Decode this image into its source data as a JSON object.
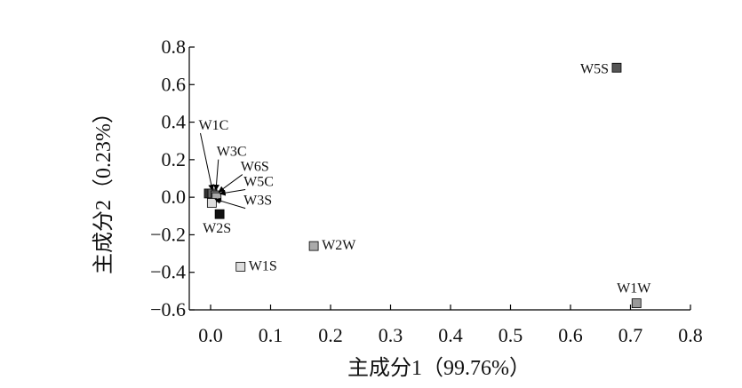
{
  "chart_data": {
    "type": "scatter",
    "xlabel": "主成分1（99.76%）",
    "ylabel": "主成分2（0.23%）",
    "xlim": [
      -0.03,
      0.8
    ],
    "ylim": [
      -0.6,
      0.8
    ],
    "x_ticks": [
      0.0,
      0.1,
      0.2,
      0.3,
      0.4,
      0.5,
      0.6,
      0.7,
      0.8
    ],
    "y_ticks": [
      0.8,
      0.6,
      0.4,
      0.2,
      0.0,
      -0.2,
      -0.4,
      -0.6
    ],
    "x_tick_labels": [
      "0.0",
      "0.1",
      "0.2",
      "0.3",
      "0.4",
      "0.5",
      "0.6",
      "0.7",
      "0.8"
    ],
    "y_tick_labels": [
      "0.8",
      "0.6",
      "0.4",
      "0.2",
      "0.0",
      "−0.2",
      "−0.4",
      "−0.6"
    ],
    "grid": false,
    "points": [
      {
        "label": "W5S",
        "x": 0.677,
        "y": 0.69,
        "color": "#555555",
        "label_pos": "left"
      },
      {
        "label": "W1C",
        "x": -0.003,
        "y": 0.02,
        "color": "#333333",
        "label_pos": "arrow",
        "label_at": [
          -0.02,
          0.36
        ]
      },
      {
        "label": "W3C",
        "x": 0.003,
        "y": 0.02,
        "color": "#666666",
        "label_pos": "arrow",
        "label_at": [
          0.01,
          0.22
        ]
      },
      {
        "label": "W6S",
        "x": 0.008,
        "y": 0.01,
        "color": "#888888",
        "label_pos": "arrow",
        "label_at": [
          0.05,
          0.14
        ]
      },
      {
        "label": "W5C",
        "x": 0.01,
        "y": 0.0,
        "color": "#aaaaaa",
        "label_pos": "arrow",
        "label_at": [
          0.055,
          0.06
        ]
      },
      {
        "label": "W3S",
        "x": 0.002,
        "y": -0.03,
        "color": "#dddddd",
        "label_pos": "arrow",
        "label_at": [
          0.055,
          -0.04
        ]
      },
      {
        "label": "W2S",
        "x": 0.015,
        "y": -0.09,
        "color": "#111111",
        "label_pos": "below"
      },
      {
        "label": "W2W",
        "x": 0.172,
        "y": -0.26,
        "color": "#aaaaaa",
        "label_pos": "right"
      },
      {
        "label": "W1S",
        "x": 0.05,
        "y": -0.37,
        "color": "#dddddd",
        "label_pos": "right"
      },
      {
        "label": "W1W",
        "x": 0.71,
        "y": -0.565,
        "color": "#999999",
        "label_pos": "above"
      }
    ]
  }
}
